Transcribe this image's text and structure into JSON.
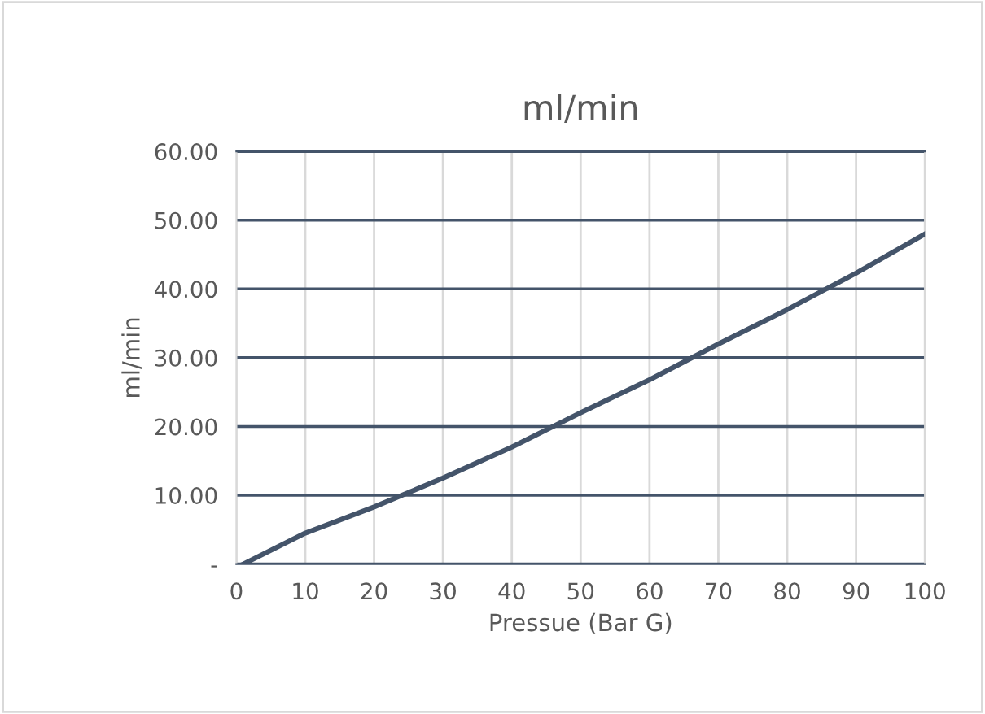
{
  "chart_data": {
    "type": "line",
    "title": "ml/min",
    "xlabel": "Pressue (Bar G)",
    "ylabel": "ml/min",
    "x": [
      1,
      10,
      20,
      30,
      40,
      50,
      60,
      70,
      80,
      90,
      100
    ],
    "series": [
      {
        "color": "#44546a",
        "values": [
          0,
          4.5,
          8.3,
          12.5,
          17,
          22,
          26.8,
          32,
          37,
          42.3,
          48
        ]
      }
    ],
    "xlim": [
      0,
      100
    ],
    "xticks": [
      0,
      10,
      20,
      30,
      40,
      50,
      60,
      70,
      80,
      90,
      100
    ],
    "ylim": [
      0,
      60
    ],
    "yticks": [
      {
        "value": 0,
        "label": "-"
      },
      {
        "value": 10,
        "label": "10.00"
      },
      {
        "value": 20,
        "label": "20.00"
      },
      {
        "value": 30,
        "label": "30.00"
      },
      {
        "value": 40,
        "label": "40.00"
      },
      {
        "value": 50,
        "label": "50.00"
      },
      {
        "value": 60,
        "label": "60.00"
      }
    ],
    "grid": true,
    "legend": false,
    "marker": "none",
    "line_style": "solid"
  }
}
